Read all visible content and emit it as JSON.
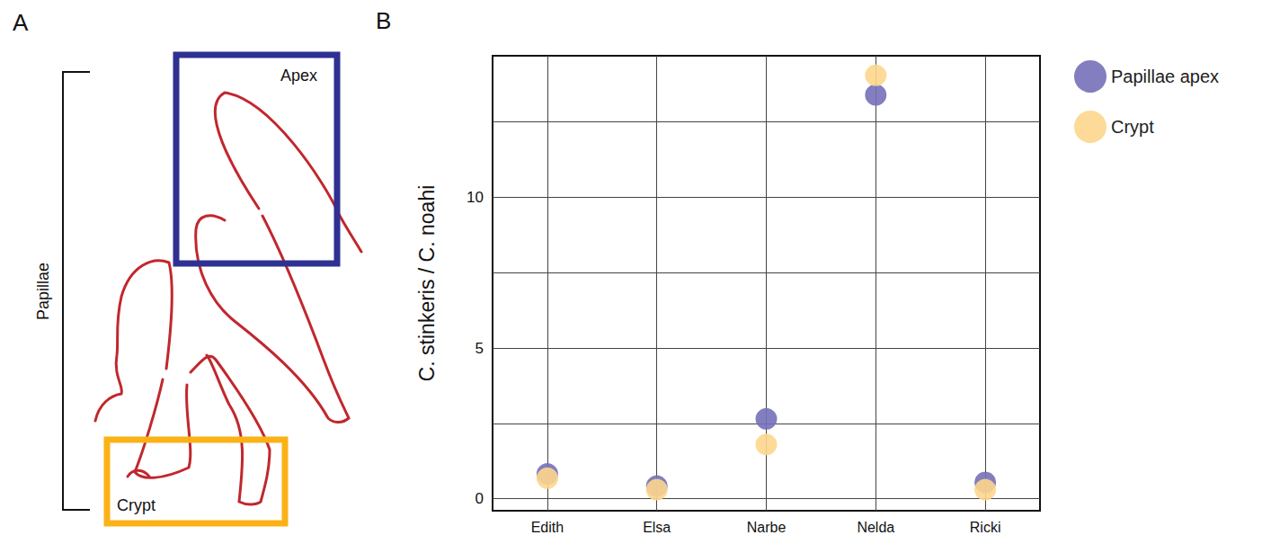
{
  "panel_labels": [
    "A",
    "B"
  ],
  "diagram": {
    "bracket_label": "Papillae",
    "boxes": [
      {
        "label": "Apex",
        "color": "#2e3192"
      },
      {
        "label": "Crypt",
        "color": "#fbb217"
      }
    ]
  },
  "chart_data": {
    "type": "scatter",
    "y_label": "C. stinkeris / C. noahi",
    "categories": [
      "Edith",
      "Elsa",
      "Narbe",
      "Nelda",
      "Ricki"
    ],
    "series": [
      {
        "name": "Papillae apex",
        "color": "#7470b8",
        "values": [
          0.82,
          0.42,
          2.65,
          13.4,
          0.54
        ]
      },
      {
        "name": "Crypt",
        "color": "#fdd68c",
        "values": [
          0.68,
          0.3,
          1.8,
          14.05,
          0.3
        ]
      }
    ],
    "ylim": [
      -0.4,
      14.7
    ],
    "yticks": [
      0,
      5,
      10
    ],
    "grid": true,
    "legend": "right",
    "marker": "circle"
  }
}
